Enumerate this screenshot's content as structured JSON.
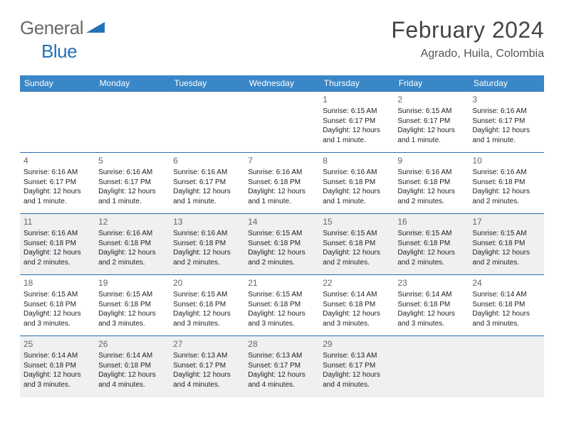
{
  "logo": {
    "general": "General",
    "blue": "Blue"
  },
  "header": {
    "title": "February 2024",
    "location": "Agrado, Huila, Colombia"
  },
  "dayNames": [
    "Sunday",
    "Monday",
    "Tuesday",
    "Wednesday",
    "Thursday",
    "Friday",
    "Saturday"
  ],
  "colors": {
    "headerBar": "#3a87c8",
    "rowBorder": "#2b6fa8",
    "evenRow": "#eef0f2",
    "logoBlue": "#2471b8",
    "titleGray": "#444444"
  },
  "weeks": [
    [
      null,
      null,
      null,
      null,
      {
        "n": "1",
        "sr": "6:15 AM",
        "ss": "6:17 PM",
        "dl": "12 hours and 1 minute."
      },
      {
        "n": "2",
        "sr": "6:15 AM",
        "ss": "6:17 PM",
        "dl": "12 hours and 1 minute."
      },
      {
        "n": "3",
        "sr": "6:16 AM",
        "ss": "6:17 PM",
        "dl": "12 hours and 1 minute."
      }
    ],
    [
      {
        "n": "4",
        "sr": "6:16 AM",
        "ss": "6:17 PM",
        "dl": "12 hours and 1 minute."
      },
      {
        "n": "5",
        "sr": "6:16 AM",
        "ss": "6:17 PM",
        "dl": "12 hours and 1 minute."
      },
      {
        "n": "6",
        "sr": "6:16 AM",
        "ss": "6:17 PM",
        "dl": "12 hours and 1 minute."
      },
      {
        "n": "7",
        "sr": "6:16 AM",
        "ss": "6:18 PM",
        "dl": "12 hours and 1 minute."
      },
      {
        "n": "8",
        "sr": "6:16 AM",
        "ss": "6:18 PM",
        "dl": "12 hours and 1 minute."
      },
      {
        "n": "9",
        "sr": "6:16 AM",
        "ss": "6:18 PM",
        "dl": "12 hours and 2 minutes."
      },
      {
        "n": "10",
        "sr": "6:16 AM",
        "ss": "6:18 PM",
        "dl": "12 hours and 2 minutes."
      }
    ],
    [
      {
        "n": "11",
        "sr": "6:16 AM",
        "ss": "6:18 PM",
        "dl": "12 hours and 2 minutes."
      },
      {
        "n": "12",
        "sr": "6:16 AM",
        "ss": "6:18 PM",
        "dl": "12 hours and 2 minutes."
      },
      {
        "n": "13",
        "sr": "6:16 AM",
        "ss": "6:18 PM",
        "dl": "12 hours and 2 minutes."
      },
      {
        "n": "14",
        "sr": "6:15 AM",
        "ss": "6:18 PM",
        "dl": "12 hours and 2 minutes."
      },
      {
        "n": "15",
        "sr": "6:15 AM",
        "ss": "6:18 PM",
        "dl": "12 hours and 2 minutes."
      },
      {
        "n": "16",
        "sr": "6:15 AM",
        "ss": "6:18 PM",
        "dl": "12 hours and 2 minutes."
      },
      {
        "n": "17",
        "sr": "6:15 AM",
        "ss": "6:18 PM",
        "dl": "12 hours and 2 minutes."
      }
    ],
    [
      {
        "n": "18",
        "sr": "6:15 AM",
        "ss": "6:18 PM",
        "dl": "12 hours and 3 minutes."
      },
      {
        "n": "19",
        "sr": "6:15 AM",
        "ss": "6:18 PM",
        "dl": "12 hours and 3 minutes."
      },
      {
        "n": "20",
        "sr": "6:15 AM",
        "ss": "6:18 PM",
        "dl": "12 hours and 3 minutes."
      },
      {
        "n": "21",
        "sr": "6:15 AM",
        "ss": "6:18 PM",
        "dl": "12 hours and 3 minutes."
      },
      {
        "n": "22",
        "sr": "6:14 AM",
        "ss": "6:18 PM",
        "dl": "12 hours and 3 minutes."
      },
      {
        "n": "23",
        "sr": "6:14 AM",
        "ss": "6:18 PM",
        "dl": "12 hours and 3 minutes."
      },
      {
        "n": "24",
        "sr": "6:14 AM",
        "ss": "6:18 PM",
        "dl": "12 hours and 3 minutes."
      }
    ],
    [
      {
        "n": "25",
        "sr": "6:14 AM",
        "ss": "6:18 PM",
        "dl": "12 hours and 3 minutes."
      },
      {
        "n": "26",
        "sr": "6:14 AM",
        "ss": "6:18 PM",
        "dl": "12 hours and 4 minutes."
      },
      {
        "n": "27",
        "sr": "6:13 AM",
        "ss": "6:17 PM",
        "dl": "12 hours and 4 minutes."
      },
      {
        "n": "28",
        "sr": "6:13 AM",
        "ss": "6:17 PM",
        "dl": "12 hours and 4 minutes."
      },
      {
        "n": "29",
        "sr": "6:13 AM",
        "ss": "6:17 PM",
        "dl": "12 hours and 4 minutes."
      },
      null,
      null
    ]
  ],
  "labels": {
    "sunrise": "Sunrise: ",
    "sunset": "Sunset: ",
    "daylight": "Daylight: "
  }
}
